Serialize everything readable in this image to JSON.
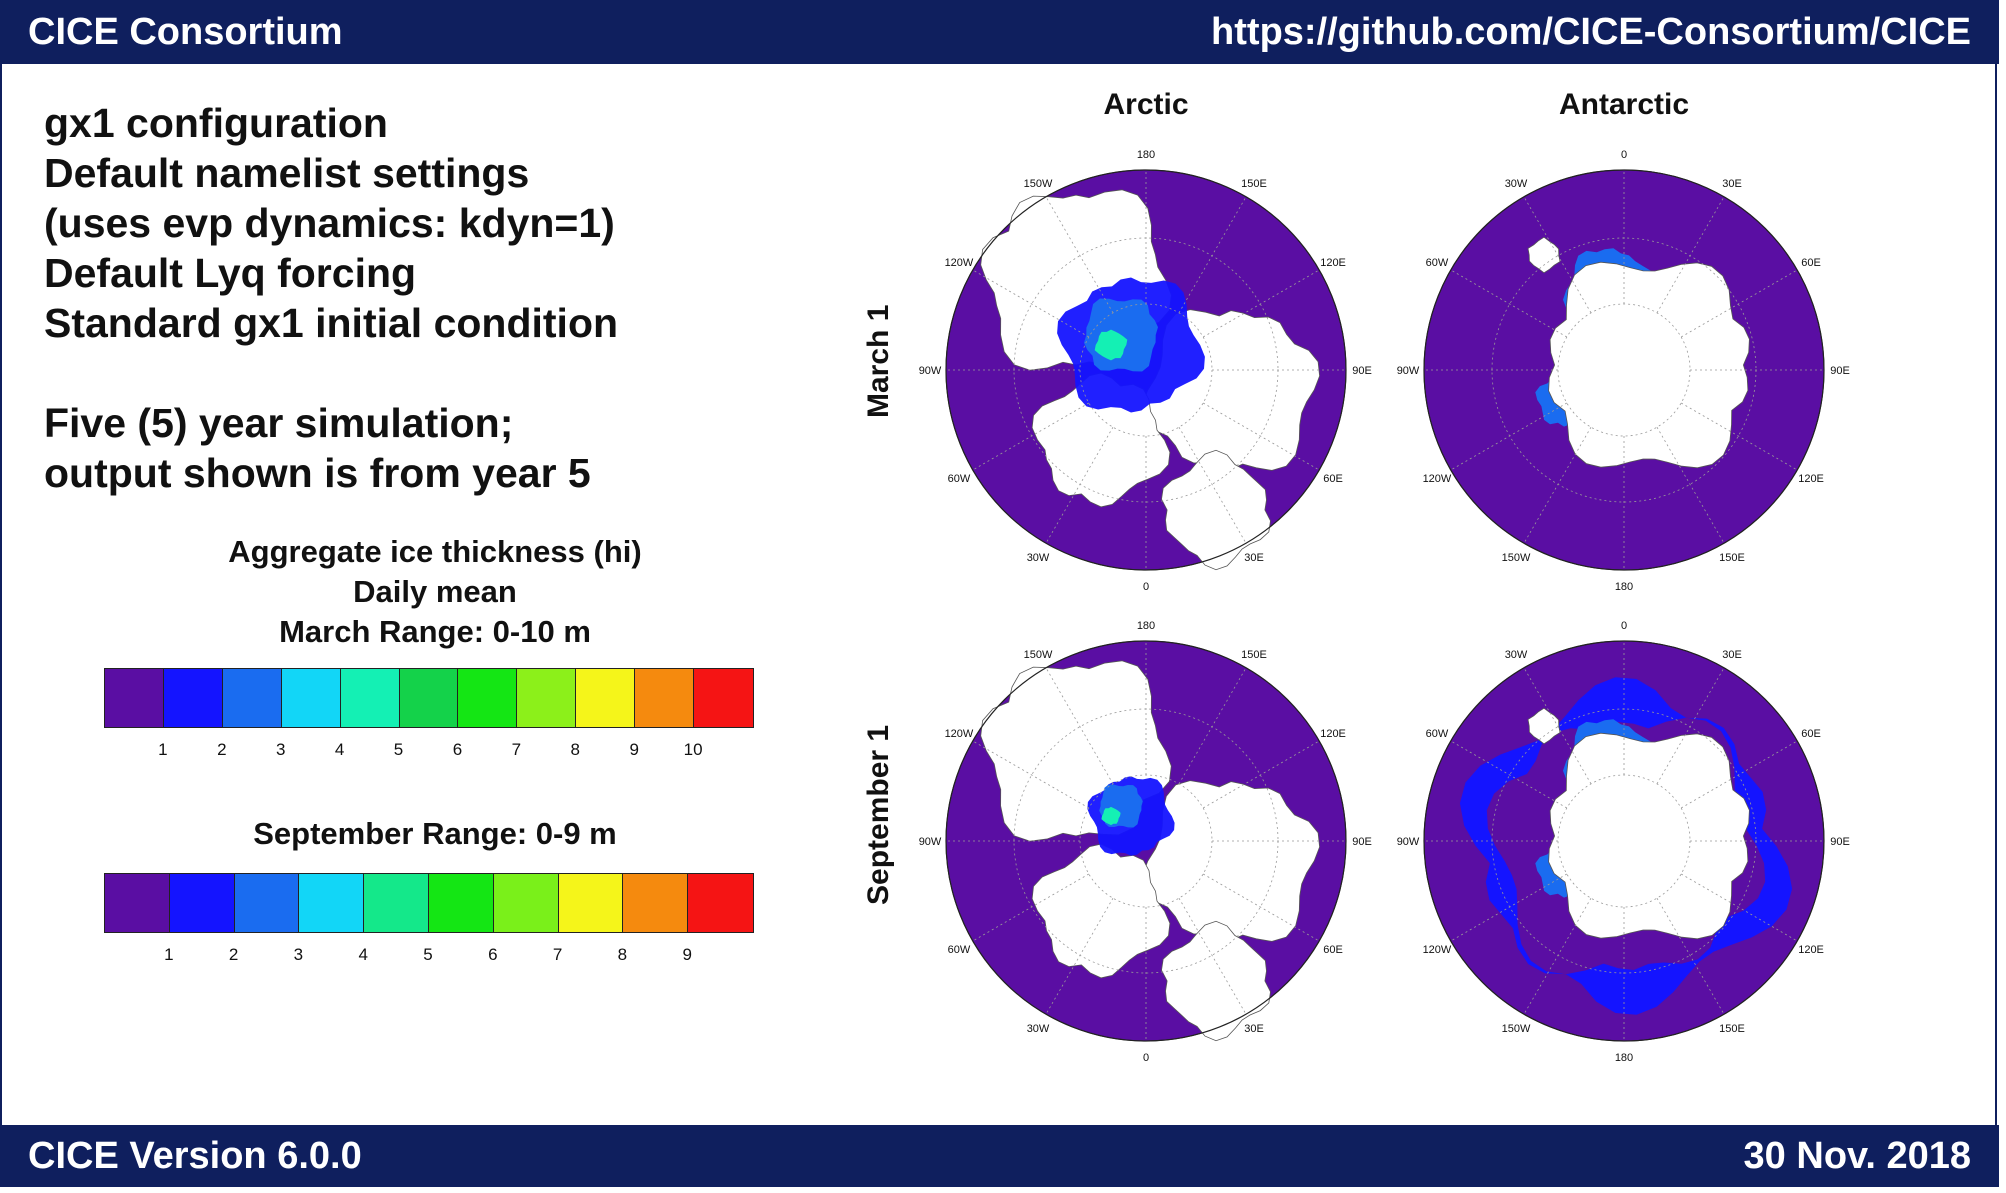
{
  "header": {
    "org": "CICE Consortium",
    "url": "https://github.com/CICE-Consortium/CICE"
  },
  "footer": {
    "version": "CICE Version 6.0.0",
    "date": "30 Nov. 2018"
  },
  "config_lines": [
    "gx1 configuration",
    "Default namelist settings",
    "(uses evp dynamics: kdyn=1)",
    "Default Lyq forcing",
    "Standard gx1 initial condition",
    "",
    "Five (5) year simulation;",
    "output shown is from year 5"
  ],
  "legend": {
    "title_line1": "Aggregate ice thickness (hi)",
    "title_line2": "Daily mean",
    "march_range": "March  Range: 0-10 m",
    "september_range": "September  Range: 0-9 m",
    "march_ticks": [
      "1",
      "2",
      "3",
      "4",
      "5",
      "6",
      "7",
      "8",
      "9",
      "10"
    ],
    "september_ticks": [
      "1",
      "2",
      "3",
      "4",
      "5",
      "6",
      "7",
      "8",
      "9"
    ],
    "march_colors": [
      "#5a0ea3",
      "#1414ff",
      "#1a6cf0",
      "#12d6f7",
      "#14f0b4",
      "#14d24a",
      "#14e614",
      "#8cf01a",
      "#f5f51a",
      "#f58a0e",
      "#f51414"
    ],
    "september_colors": [
      "#5a0ea3",
      "#1414ff",
      "#1a6cf0",
      "#12d6f7",
      "#14e88a",
      "#14e614",
      "#7af01a",
      "#f5f51a",
      "#f58a0e",
      "#f51414"
    ]
  },
  "maps": {
    "col_titles": [
      "Arctic",
      "Antarctic"
    ],
    "row_titles": [
      "March 1",
      "September 1"
    ],
    "arctic_labels": [
      "180",
      "150E",
      "120E",
      "90E",
      "60E",
      "30E",
      "0",
      "30W",
      "60W",
      "90W",
      "120W",
      "150W"
    ],
    "antarctic_labels": [
      "0",
      "30E",
      "60E",
      "90E",
      "120E",
      "150E",
      "180",
      "150W",
      "120W",
      "90W",
      "60W",
      "30W"
    ],
    "ocean_color": "#5a0ea3",
    "land_color": "#ffffff"
  }
}
